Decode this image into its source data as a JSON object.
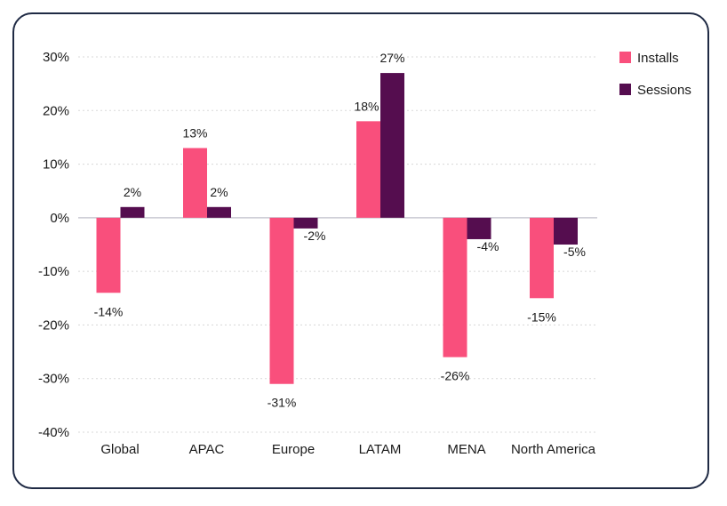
{
  "chart_data": {
    "type": "bar",
    "title": "",
    "xlabel": "",
    "ylabel": "",
    "ylim": [
      -40,
      30
    ],
    "yticks": [
      30,
      20,
      10,
      0,
      -10,
      -20,
      -30,
      -40
    ],
    "ytick_labels": [
      "30%",
      "20%",
      "10%",
      "0%",
      "-10%",
      "-20%",
      "-30%",
      "-40%"
    ],
    "grid": true,
    "legend_position": "top-right",
    "categories": [
      "Global",
      "APAC",
      "Europe",
      "LATAM",
      "MENA",
      "North America"
    ],
    "series": [
      {
        "name": "Installs",
        "color": "#f94f7c",
        "values": [
          -14,
          13,
          -31,
          18,
          -26,
          -15
        ],
        "labels": [
          "-14%",
          "13%",
          "-31%",
          "18%",
          "-26%",
          "-15%"
        ]
      },
      {
        "name": "Sessions",
        "color": "#550d4f",
        "values": [
          2,
          2,
          -2,
          27,
          -4,
          -5
        ],
        "labels": [
          "2%",
          "2%",
          "-2%",
          "27%",
          "-4%",
          "-5%"
        ]
      }
    ]
  }
}
